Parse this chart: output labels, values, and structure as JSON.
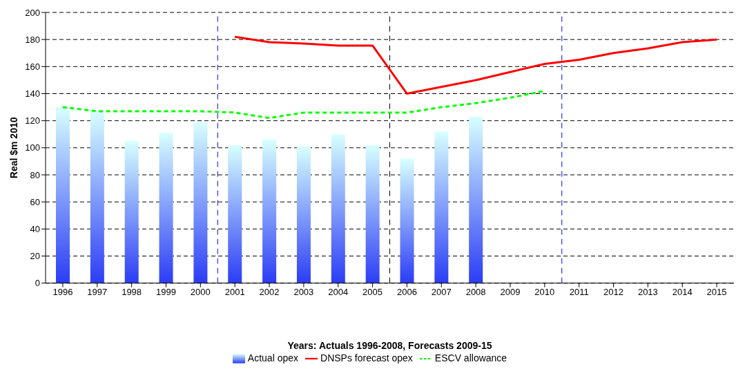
{
  "chart_data": {
    "type": "bar",
    "xlabel": "Years: Actuals 1996-2008, Forecasts 2009-15",
    "ylabel": "Real $m 2010",
    "x": [
      1996,
      1997,
      1998,
      1999,
      2000,
      2001,
      2002,
      2003,
      2004,
      2005,
      2006,
      2007,
      2008,
      2009,
      2010,
      2011,
      2012,
      2013,
      2014,
      2015
    ],
    "xlim": [
      1995.5,
      2015.5
    ],
    "xticks": [
      1996,
      1997,
      1998,
      1999,
      2000,
      2001,
      2002,
      2003,
      2004,
      2005,
      2006,
      2007,
      2008,
      2009,
      2010,
      2011,
      2012,
      2013,
      2014,
      2015
    ],
    "ylim": [
      0,
      200
    ],
    "yticks": [
      0,
      20,
      40,
      60,
      80,
      100,
      120,
      140,
      160,
      180,
      200
    ],
    "grid": "y",
    "legend": "bottom",
    "series": [
      {
        "name": "Actual opex",
        "color": "#2b3cf5",
        "values": [
          130,
          127,
          105,
          111,
          119,
          102,
          106,
          101,
          110,
          102,
          92,
          112,
          123,
          null,
          null,
          null,
          null,
          null,
          null,
          null
        ]
      },
      {
        "type": "line",
        "name": "DNSPs forecast opex",
        "color": "#ff0000",
        "line_style": "solid",
        "values": [
          null,
          null,
          null,
          null,
          null,
          182,
          178,
          177,
          175.5,
          175.5,
          140,
          145,
          150,
          156,
          162,
          165,
          170,
          173.5,
          178,
          180
        ]
      },
      {
        "type": "line",
        "name": "ESCV allowance",
        "color": "#00ff00",
        "line_style": "dashed",
        "values": [
          130,
          127,
          127,
          127,
          127,
          126,
          122,
          126,
          126,
          126,
          126,
          130,
          133,
          137,
          142,
          null,
          null,
          null,
          null,
          null
        ]
      }
    ],
    "ref_lines": [
      {
        "axis": "x",
        "value": 2000.5,
        "color": "#0000ff",
        "line_style": "dashed"
      },
      {
        "axis": "x",
        "value": 2005.5,
        "color": "#000000",
        "line_style": "dashed"
      },
      {
        "axis": "x",
        "value": 2010.5,
        "color": "#0000ff",
        "line_style": "dashed"
      }
    ]
  }
}
